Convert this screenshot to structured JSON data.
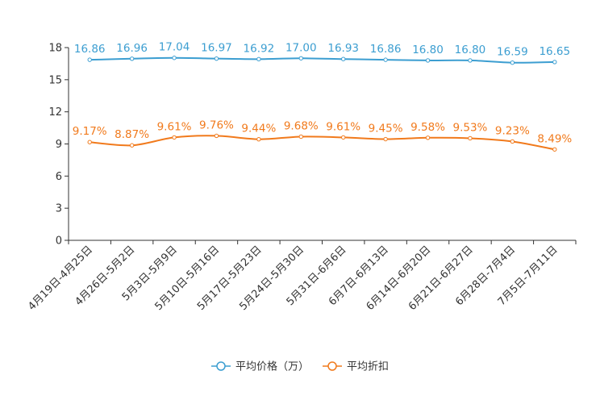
{
  "chart_data": {
    "type": "line",
    "categories": [
      "4月19日-4月25日",
      "4月26日-5月2日",
      "5月3日-5月9日",
      "5月10日-5月16日",
      "5月17日-5月23日",
      "5月24日-5月30日",
      "5月31日-6月6日",
      "6月7日-6月13日",
      "6月14日-6月20日",
      "6月21日-6月27日",
      "6月28日-7月4日",
      "7月5日-7月11日"
    ],
    "series": [
      {
        "name": "平均价格（万）",
        "color": "#3c9ed1",
        "values": [
          16.86,
          16.96,
          17.04,
          16.97,
          16.92,
          17.0,
          16.93,
          16.86,
          16.8,
          16.8,
          16.59,
          16.65
        ],
        "labels": [
          "16.86",
          "16.96",
          "17.04",
          "16.97",
          "16.92",
          "17.00",
          "16.93",
          "16.86",
          "16.80",
          "16.80",
          "16.59",
          "16.65"
        ]
      },
      {
        "name": "平均折扣",
        "color": "#f17a1c",
        "values": [
          9.17,
          8.87,
          9.61,
          9.76,
          9.44,
          9.68,
          9.61,
          9.45,
          9.58,
          9.53,
          9.23,
          8.49
        ],
        "labels": [
          "9.17%",
          "8.87%",
          "9.61%",
          "9.76%",
          "9.44%",
          "9.68%",
          "9.61%",
          "9.45%",
          "9.58%",
          "9.53%",
          "9.23%",
          "8.49%"
        ]
      }
    ],
    "yticks": [
      "0",
      "3",
      "6",
      "9",
      "12",
      "15",
      "18"
    ],
    "ylim": [
      0,
      18
    ],
    "legend_position": "bottom"
  }
}
